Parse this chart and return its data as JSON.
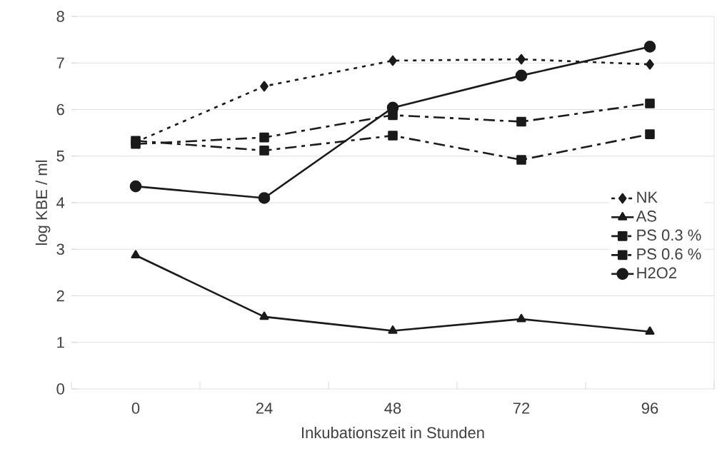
{
  "chart_data": {
    "type": "line",
    "xlabel": "Inkubationszeit in Stunden",
    "ylabel": "log KBE / ml",
    "categories": [
      "0",
      "24",
      "48",
      "72",
      "96"
    ],
    "ylim": [
      0,
      8
    ],
    "yticks": [
      0,
      1,
      2,
      3,
      4,
      5,
      6,
      7,
      8
    ],
    "grid": "y",
    "legend": "right",
    "series": [
      {
        "name": "NK",
        "color": "#1a1a1a",
        "marker": "diamond",
        "line_style": "dotted",
        "values": [
          5.3,
          6.5,
          7.05,
          7.08,
          6.97
        ]
      },
      {
        "name": "AS",
        "color": "#1a1a1a",
        "marker": "triangle",
        "line_style": "solid",
        "values": [
          2.87,
          1.55,
          1.25,
          1.5,
          1.23
        ]
      },
      {
        "name": "PS 0.3 %",
        "color": "#1a1a1a",
        "marker": "square",
        "line_style": "dashed",
        "values": [
          5.26,
          5.4,
          5.88,
          5.74,
          6.13
        ]
      },
      {
        "name": "PS 0.6 %",
        "color": "#1a1a1a",
        "marker": "square",
        "line_style": "dashed",
        "values": [
          5.33,
          5.12,
          5.44,
          4.92,
          5.47
        ]
      },
      {
        "name": "H2O2",
        "color": "#1a1a1a",
        "marker": "circle",
        "line_style": "solid",
        "values": [
          4.35,
          4.1,
          6.04,
          6.73,
          7.35
        ]
      }
    ]
  }
}
